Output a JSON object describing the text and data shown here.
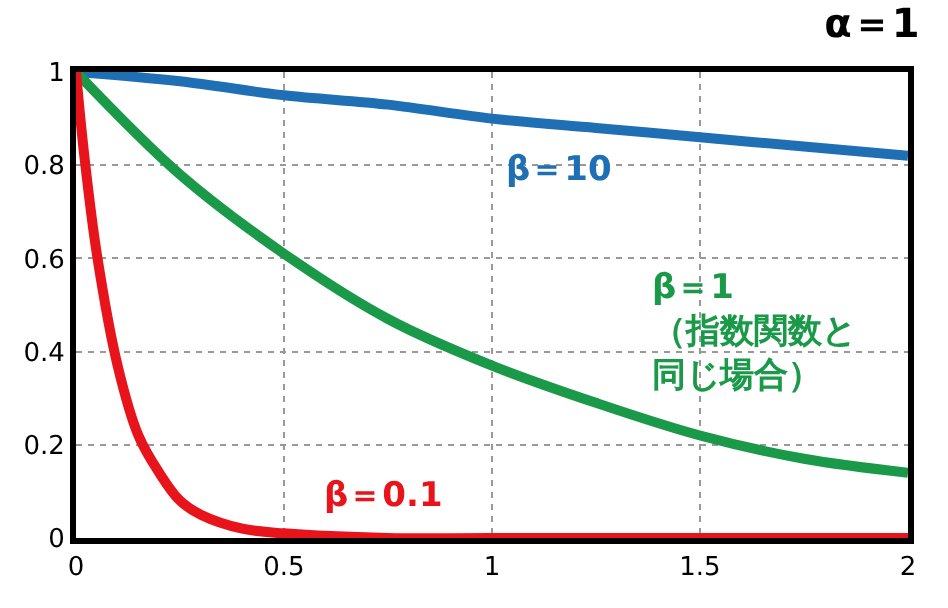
{
  "chart_data": {
    "type": "line",
    "title": "α＝1",
    "xlim": [
      0,
      2
    ],
    "ylim": [
      0,
      1
    ],
    "xticks": [
      0,
      0.5,
      1,
      1.5,
      2
    ],
    "yticks": [
      0,
      0.2,
      0.4,
      0.6,
      0.8,
      1
    ],
    "grid": true,
    "legend": false,
    "marker": "none",
    "line_style": "solid",
    "series": [
      {
        "name": "β＝10",
        "color": "#1f6fb5",
        "x": [
          0,
          0.25,
          0.5,
          0.75,
          1,
          1.25,
          1.5,
          1.75,
          2
        ],
        "values": [
          1,
          0.98,
          0.95,
          0.93,
          0.9,
          0.88,
          0.86,
          0.84,
          0.82
        ]
      },
      {
        "name": "β＝1（指数関数と同じ場合）",
        "color": "#1a9a48",
        "x": [
          0,
          0.25,
          0.5,
          0.75,
          1,
          1.25,
          1.5,
          1.75,
          2
        ],
        "values": [
          1,
          0.78,
          0.61,
          0.47,
          0.37,
          0.29,
          0.22,
          0.17,
          0.14
        ]
      },
      {
        "name": "β＝0.1",
        "color": "#e8141b",
        "x": [
          0,
          0.02,
          0.05,
          0.1,
          0.15,
          0.2,
          0.25,
          0.3,
          0.4,
          0.5,
          0.75,
          1,
          1.5,
          2
        ],
        "values": [
          1,
          0.82,
          0.61,
          0.37,
          0.22,
          0.14,
          0.08,
          0.05,
          0.02,
          0.01,
          0,
          0,
          0,
          0
        ]
      }
    ]
  }
}
